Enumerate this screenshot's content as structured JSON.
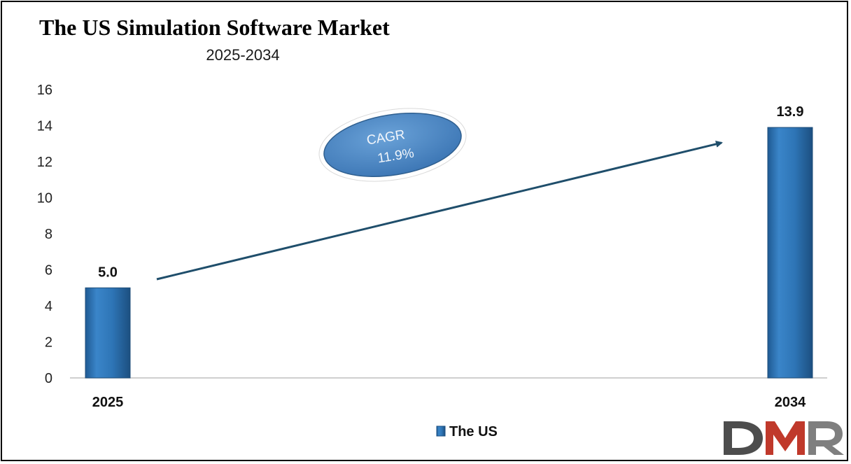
{
  "chart_data": {
    "type": "bar",
    "title": "The US Simulation Software Market",
    "subtitle": "2025-2034",
    "categories": [
      "2025",
      "2034"
    ],
    "series": [
      {
        "name": "The US",
        "values": [
          5.0,
          13.9
        ],
        "labels": [
          "5.0",
          "13.9"
        ]
      }
    ],
    "ylim": [
      0,
      16
    ],
    "yticks": [
      "0",
      "2",
      "4",
      "6",
      "8",
      "10",
      "12",
      "14",
      "16"
    ],
    "grid": false,
    "legend": "bottom-center",
    "annotation": {
      "line1": "CAGR",
      "line2": "11.9%"
    },
    "colors": {
      "bar": "#2e75b6",
      "bar_dark": "#1f4e79",
      "arrow": "#1f4e6b",
      "cagr_fill": "#4a86c5"
    }
  },
  "logo": {
    "text": "DMR",
    "colors": [
      "#4d4d4d",
      "#c0392b",
      "#7f7f7f"
    ]
  }
}
